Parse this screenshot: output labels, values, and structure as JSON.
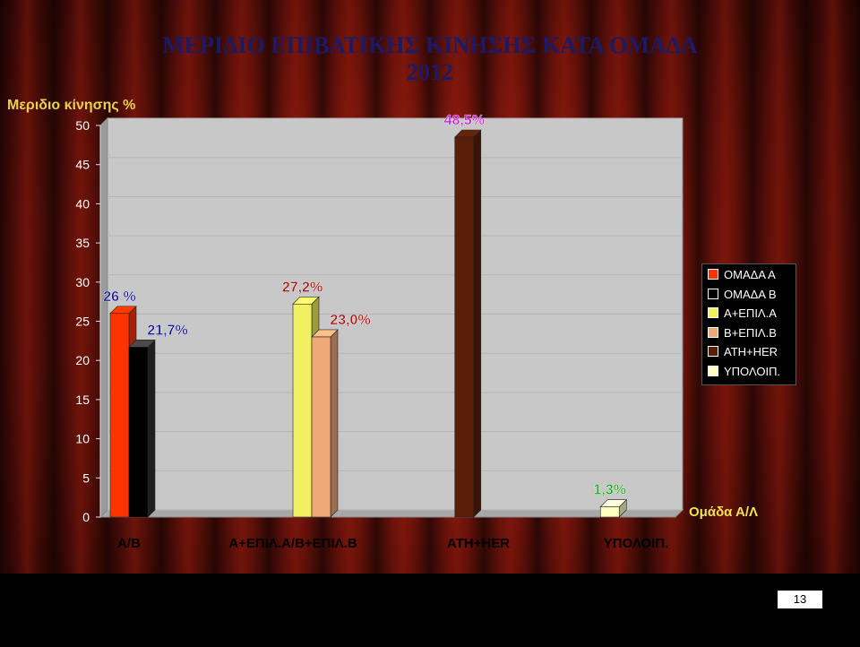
{
  "slide": {
    "page_number": "13"
  },
  "chart_data": {
    "type": "bar",
    "title": "ΜΕΡΙΔΙΟ ΕΠΙΒΑΤΙΚΗΣ ΚΙΝΗΣΗΣ ΚΑΤΑ ΟΜΑΔΑ",
    "subtitle": "2012",
    "ylabel": "Μεριδιο κίνησης %",
    "ylim": [
      0,
      50
    ],
    "yticks": [
      0,
      5,
      10,
      15,
      20,
      25,
      30,
      35,
      40,
      45,
      50
    ],
    "categories": [
      "Α/Β",
      "Α+ΕΠΙΛ.Α/Β+ΕΠΙΛ.Β",
      "ATH+HER",
      "ΥΠΟΛΟΙΠ."
    ],
    "series_caption": "Ομάδα Α/Λ",
    "bars": [
      {
        "name": "ΟΜΑΔΑ Α",
        "category": 0,
        "value": 26.0,
        "label": "26 %",
        "color": "#ff3300",
        "label_color": "#1a1a99"
      },
      {
        "name": "ΟΜΑΔΑ Β",
        "category": 0,
        "value": 21.7,
        "label": "21,7%",
        "color": "#000000",
        "label_color": "#1a1a99"
      },
      {
        "name": "Α+ΕΠΙΛ.Α",
        "category": 1,
        "value": 27.2,
        "label": "27,2%",
        "color": "#f0f060",
        "label_color": "#a51515"
      },
      {
        "name": "Β+ΕΠΙΛ.Β",
        "category": 1,
        "value": 23.0,
        "label": "23,0%",
        "color": "#f0a878",
        "label_color": "#a51515"
      },
      {
        "name": "ATH+HER",
        "category": 2,
        "value": 48.5,
        "label": "48,5%",
        "color": "#5a1e08",
        "label_color": "#d21ad2"
      },
      {
        "name": "ΥΠΟΛΟΙΠ.",
        "category": 3,
        "value": 1.3,
        "label": "1,3%",
        "color": "#ffffc0",
        "label_color": "#1faa1f"
      }
    ],
    "legend": {
      "position": "right",
      "entries": [
        {
          "name": "ΟΜΑΔΑ Α",
          "color": "#ff3300"
        },
        {
          "name": "ΟΜΑΔΑ Β",
          "color": "#000000"
        },
        {
          "name": "Α+ΕΠΙΛ.Α",
          "color": "#f0f060"
        },
        {
          "name": "Β+ΕΠΙΛ.Β",
          "color": "#f0a878"
        },
        {
          "name": "ATH+HER",
          "color": "#5a1e08"
        },
        {
          "name": "ΥΠΟΛΟΙΠ.",
          "color": "#ffffc0"
        }
      ]
    },
    "grid": true,
    "plot_background": "#c8c8c8"
  }
}
